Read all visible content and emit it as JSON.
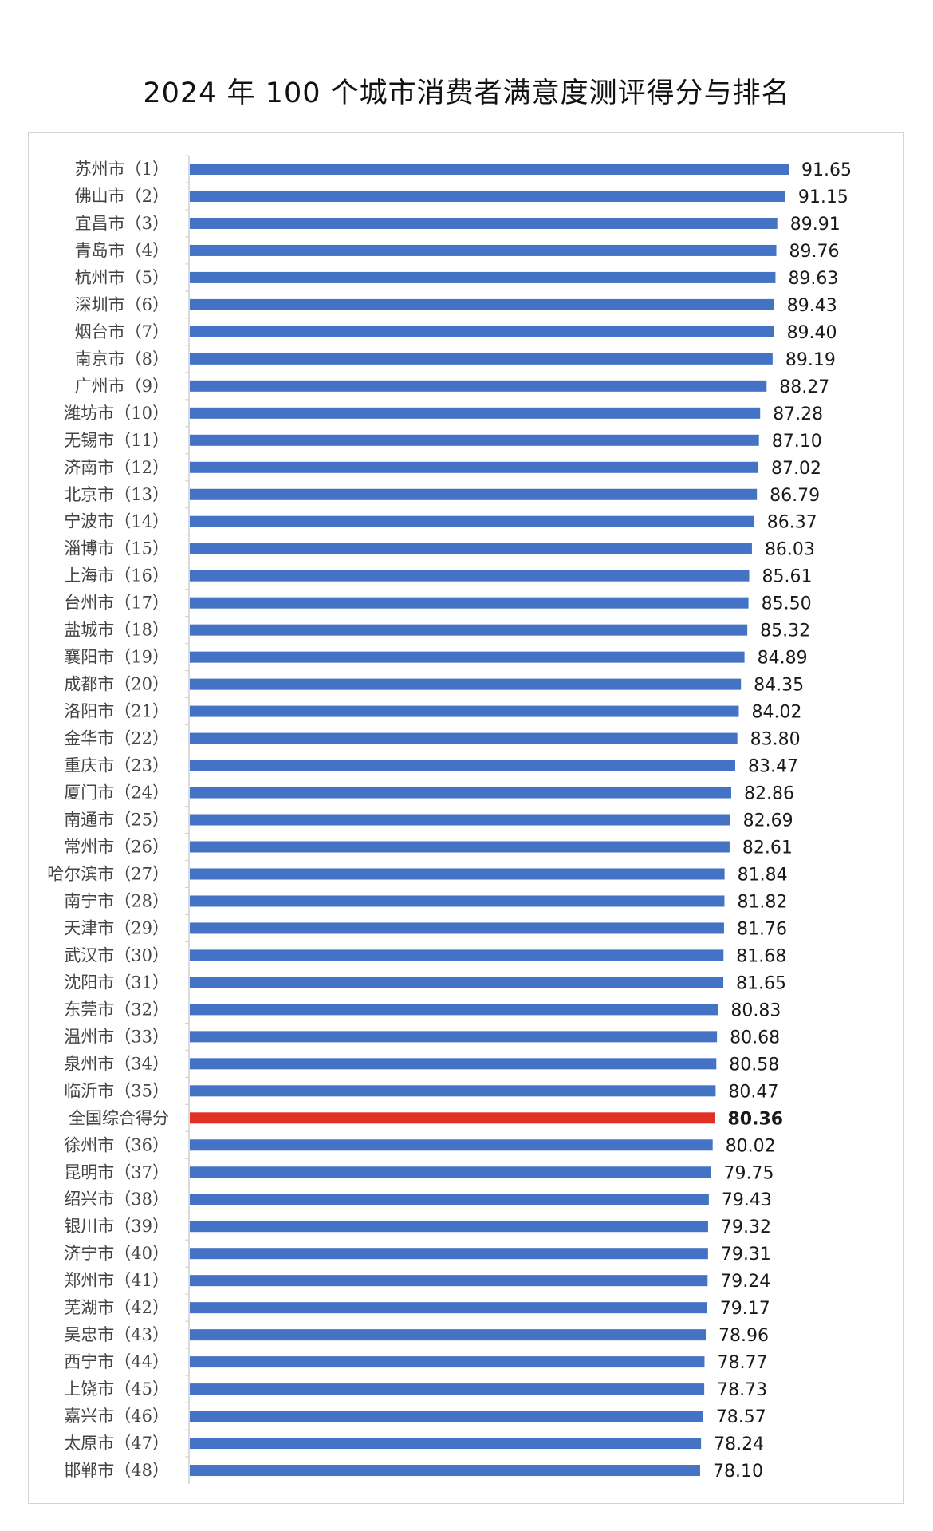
{
  "chart_data": {
    "type": "bar",
    "orientation": "horizontal",
    "title": "2024 年 100 个城市消费者满意度测评得分与排名",
    "xlabel": "",
    "ylabel": "",
    "xlim": [
      0,
      91.65
    ],
    "grid": false,
    "legend": "none",
    "colors": {
      "bar": "#4472C4",
      "highlight": "#E03026",
      "axis": "#cfcfcf"
    },
    "highlight_category": "全国综合得分",
    "categories": [
      "苏州市（1）",
      "佛山市（2）",
      "宜昌市（3）",
      "青岛市（4）",
      "杭州市（5）",
      "深圳市（6）",
      "烟台市（7）",
      "南京市（8）",
      "广州市（9）",
      "潍坊市（10）",
      "无锡市（11）",
      "济南市（12）",
      "北京市（13）",
      "宁波市（14）",
      "淄博市（15）",
      "上海市（16）",
      "台州市（17）",
      "盐城市（18）",
      "襄阳市（19）",
      "成都市（20）",
      "洛阳市（21）",
      "金华市（22）",
      "重庆市（23）",
      "厦门市（24）",
      "南通市（25）",
      "常州市（26）",
      "哈尔滨市（27）",
      "南宁市（28）",
      "天津市（29）",
      "武汉市（30）",
      "沈阳市（31）",
      "东莞市（32）",
      "温州市（33）",
      "泉州市（34）",
      "临沂市（35）",
      "全国综合得分",
      "徐州市（36）",
      "昆明市（37）",
      "绍兴市（38）",
      "银川市（39）",
      "济宁市（40）",
      "郑州市（41）",
      "芜湖市（42）",
      "吴忠市（43）",
      "西宁市（44）",
      "上饶市（45）",
      "嘉兴市（46）",
      "太原市（47）",
      "邯郸市（48）"
    ],
    "values": [
      91.65,
      91.15,
      89.91,
      89.76,
      89.63,
      89.43,
      89.4,
      89.19,
      88.27,
      87.28,
      87.1,
      87.02,
      86.79,
      86.37,
      86.03,
      85.61,
      85.5,
      85.32,
      84.89,
      84.35,
      84.02,
      83.8,
      83.47,
      82.86,
      82.69,
      82.61,
      81.84,
      81.82,
      81.76,
      81.68,
      81.65,
      80.83,
      80.68,
      80.58,
      80.47,
      80.36,
      80.02,
      79.75,
      79.43,
      79.32,
      79.31,
      79.24,
      79.17,
      78.96,
      78.77,
      78.73,
      78.57,
      78.24,
      78.1
    ],
    "value_labels": [
      "91.65",
      "91.15",
      "89.91",
      "89.76",
      "89.63",
      "89.43",
      "89.40",
      "89.19",
      "88.27",
      "87.28",
      "87.10",
      "87.02",
      "86.79",
      "86.37",
      "86.03",
      "85.61",
      "85.50",
      "85.32",
      "84.89",
      "84.35",
      "84.02",
      "83.80",
      "83.47",
      "82.86",
      "82.69",
      "82.61",
      "81.84",
      "81.82",
      "81.76",
      "81.68",
      "81.65",
      "80.83",
      "80.68",
      "80.58",
      "80.47",
      "80.36",
      "80.02",
      "79.75",
      "79.43",
      "79.32",
      "79.31",
      "79.24",
      "79.17",
      "78.96",
      "78.77",
      "78.73",
      "78.57",
      "78.24",
      "78.10"
    ]
  }
}
